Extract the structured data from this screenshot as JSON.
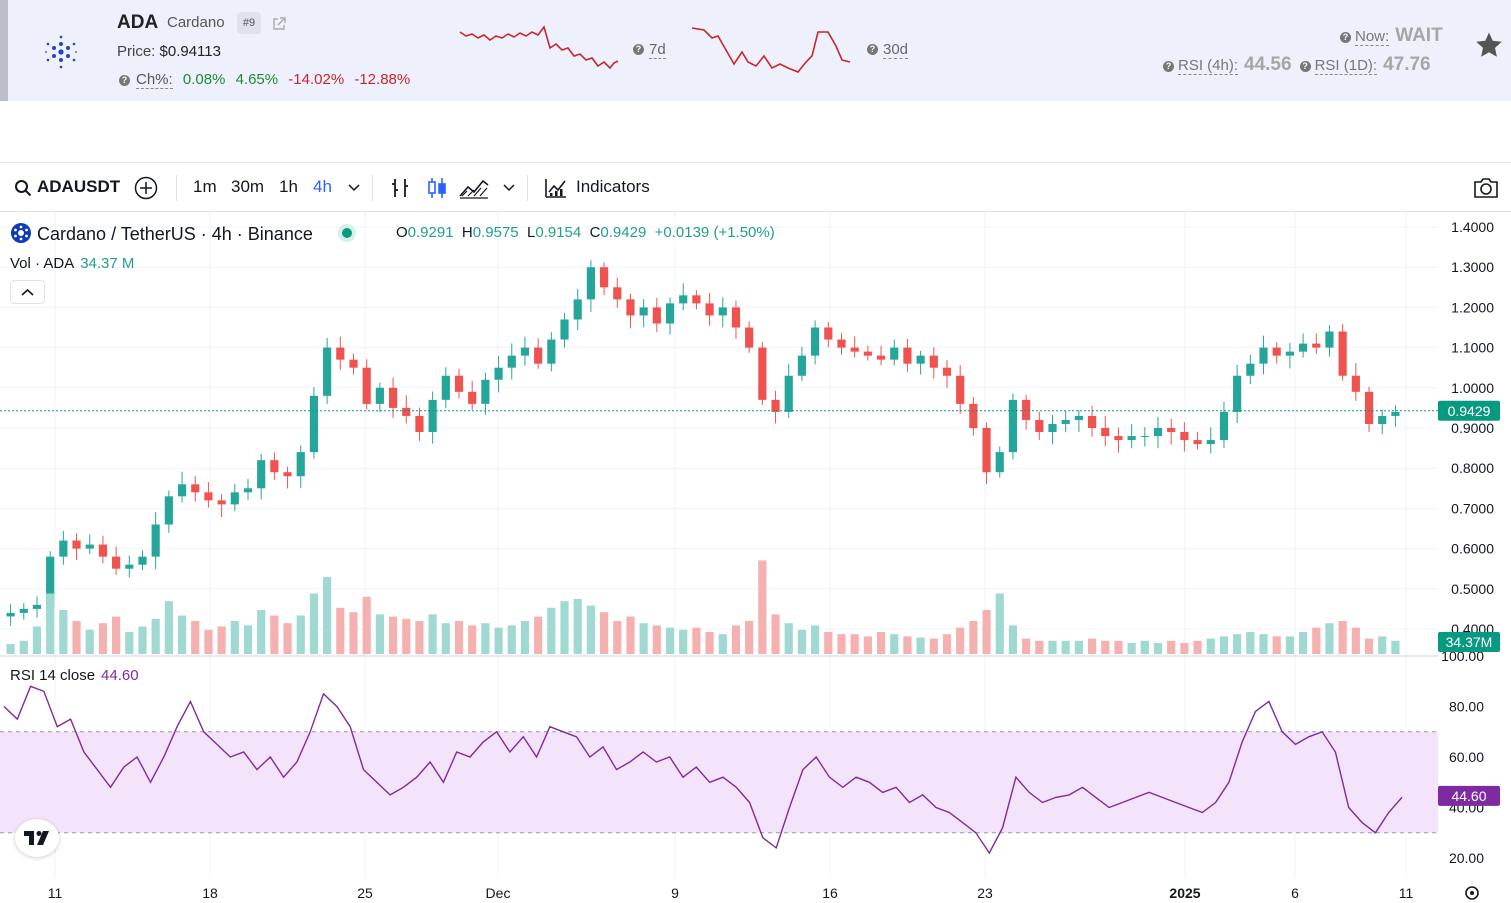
{
  "header": {
    "symbol": "ADA",
    "name": "Cardano",
    "rank": "#9",
    "price_label": "Price:",
    "price_value": "$0.94113",
    "change_label": "Ch%:",
    "changes": [
      {
        "value": "0.08%",
        "dir": "up"
      },
      {
        "value": "4.65%",
        "dir": "up"
      },
      {
        "value": "-14.02%",
        "dir": "down"
      },
      {
        "value": "-12.88%",
        "dir": "down"
      }
    ],
    "spark7_label": "7d",
    "spark30_label": "30d",
    "now_label": "Now:",
    "now_value": "WAIT",
    "rsi4h_label": "RSI (4h):",
    "rsi4h_value": "44.56",
    "rsi1d_label": "RSI (1D):",
    "rsi1d_value": "47.76",
    "icons": [
      "cardano-logo-icon",
      "external-link-icon",
      "help-icon",
      "star-icon"
    ]
  },
  "toolbar": {
    "symbol": "ADAUSDT",
    "intervals": [
      "1m",
      "30m",
      "1h",
      "4h"
    ],
    "active_interval": "4h",
    "indicators_label": "Indicators",
    "icons": [
      "search-icon",
      "add-symbol-icon",
      "chevron-down-icon",
      "bar-style-icon",
      "candle-style-icon",
      "chart-type-icon",
      "indicators-icon",
      "camera-icon"
    ]
  },
  "legend": {
    "title": "Cardano / TetherUS · 4h · Binance",
    "o_label": "O",
    "o": "0.9291",
    "h_label": "H",
    "h": "0.9575",
    "l_label": "L",
    "l": "0.9154",
    "c_label": "C",
    "c": "0.9429",
    "change": "+0.0139 (+1.50%)",
    "vol_label": "Vol · ADA",
    "vol_value": "34.37 M",
    "rsi_label": "RSI 14 close",
    "rsi_value": "44.60"
  },
  "colors": {
    "up": "#26a69a",
    "down": "#ef5350",
    "rsi_line": "#7e2aa1",
    "rsi_band": "#f3e3fb",
    "price_tag": "#089981",
    "rsi_tag": "#7e2aa1"
  },
  "chart_data": {
    "type": "candlestick",
    "pair": "ADAUSDT",
    "interval": "4h",
    "last_price": "0.9429",
    "last_volume": "34.37M",
    "last_rsi": "44.60",
    "price_ticks": [
      "1.4000",
      "1.3000",
      "1.2000",
      "1.1000",
      "1.0000",
      "0.9000",
      "0.8000",
      "0.7000",
      "0.6000",
      "0.5000",
      "0.4000"
    ],
    "price_ylim": [
      0.4,
      1.4
    ],
    "rsi_ticks": [
      "100.00",
      "80.00",
      "60.00",
      "40.00",
      "20.00"
    ],
    "rsi_band": [
      30,
      70
    ],
    "x_ticks": [
      {
        "label": "11",
        "bold": false
      },
      {
        "label": "18",
        "bold": false
      },
      {
        "label": "25",
        "bold": false
      },
      {
        "label": "Dec",
        "bold": false
      },
      {
        "label": "9",
        "bold": false
      },
      {
        "label": "16",
        "bold": false
      },
      {
        "label": "23",
        "bold": false
      },
      {
        "label": "2025",
        "bold": true
      },
      {
        "label": "6",
        "bold": false
      },
      {
        "label": "11",
        "bold": false
      }
    ],
    "close_series": [
      0.44,
      0.45,
      0.46,
      0.58,
      0.62,
      0.6,
      0.61,
      0.58,
      0.55,
      0.56,
      0.58,
      0.66,
      0.73,
      0.76,
      0.74,
      0.72,
      0.71,
      0.74,
      0.75,
      0.82,
      0.79,
      0.78,
      0.84,
      0.98,
      1.1,
      1.07,
      1.05,
      0.96,
      1.0,
      0.95,
      0.93,
      0.89,
      0.97,
      1.03,
      0.99,
      0.96,
      1.02,
      1.05,
      1.08,
      1.1,
      1.06,
      1.12,
      1.17,
      1.22,
      1.3,
      1.25,
      1.22,
      1.18,
      1.2,
      1.16,
      1.21,
      1.23,
      1.21,
      1.18,
      1.2,
      1.15,
      1.1,
      0.97,
      0.94,
      1.03,
      1.08,
      1.15,
      1.12,
      1.1,
      1.09,
      1.08,
      1.07,
      1.1,
      1.06,
      1.08,
      1.05,
      1.03,
      0.96,
      0.9,
      0.79,
      0.84,
      0.97,
      0.92,
      0.89,
      0.91,
      0.92,
      0.93,
      0.9,
      0.88,
      0.87,
      0.88,
      0.88,
      0.9,
      0.89,
      0.87,
      0.86,
      0.87,
      0.94,
      1.03,
      1.06,
      1.1,
      1.08,
      1.09,
      1.11,
      1.1,
      1.14,
      1.03,
      0.99,
      0.91,
      0.93,
      0.94
    ],
    "volume_series": [
      9,
      12,
      25,
      55,
      40,
      30,
      22,
      28,
      34,
      20,
      25,
      32,
      48,
      35,
      30,
      22,
      25,
      30,
      26,
      40,
      35,
      28,
      35,
      55,
      70,
      42,
      38,
      52,
      36,
      34,
      32,
      30,
      36,
      28,
      30,
      26,
      28,
      24,
      26,
      30,
      34,
      42,
      48,
      50,
      44,
      38,
      30,
      34,
      28,
      26,
      24,
      22,
      24,
      20,
      18,
      26,
      30,
      85,
      36,
      28,
      22,
      26,
      20,
      18,
      18,
      16,
      20,
      18,
      16,
      15,
      14,
      18,
      24,
      30,
      40,
      55,
      26,
      14,
      12,
      12,
      12,
      12,
      14,
      12,
      12,
      10,
      12,
      10,
      12,
      10,
      12,
      14,
      16,
      18,
      20,
      18,
      16,
      16,
      20,
      24,
      28,
      30,
      24,
      14,
      16,
      12
    ],
    "rsi_series": [
      80,
      75,
      88,
      86,
      72,
      75,
      62,
      55,
      48,
      56,
      60,
      50,
      60,
      72,
      82,
      70,
      65,
      60,
      62,
      55,
      60,
      52,
      58,
      70,
      85,
      80,
      72,
      55,
      50,
      45,
      48,
      52,
      58,
      50,
      62,
      60,
      66,
      70,
      62,
      68,
      60,
      72,
      70,
      68,
      60,
      64,
      55,
      58,
      62,
      58,
      60,
      52,
      56,
      50,
      52,
      48,
      42,
      28,
      24,
      40,
      55,
      60,
      52,
      48,
      52,
      50,
      46,
      48,
      42,
      45,
      40,
      38,
      34,
      30,
      22,
      32,
      52,
      46,
      42,
      44,
      45,
      48,
      44,
      40,
      42,
      44,
      46,
      44,
      42,
      40,
      38,
      42,
      50,
      66,
      78,
      82,
      70,
      65,
      68,
      70,
      62,
      40,
      34,
      30,
      38,
      44
    ]
  }
}
